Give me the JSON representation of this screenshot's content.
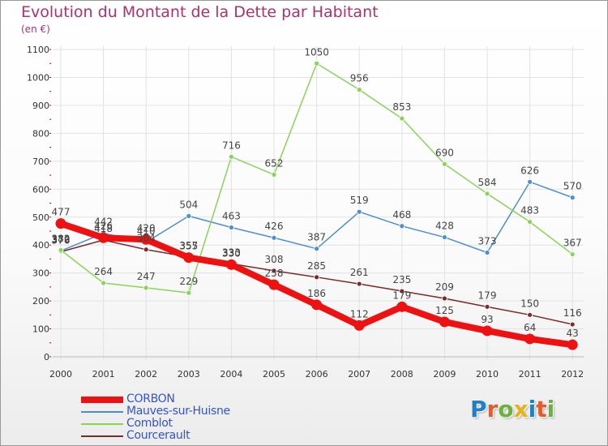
{
  "header": {
    "title": "Evolution du Montant de la Dette par Habitant",
    "subtitle": "(en €)"
  },
  "logo": {
    "letters": [
      "P",
      "r",
      "o",
      "x",
      "i",
      "t",
      "i"
    ]
  },
  "colors": {
    "title": "#b0306e",
    "legend_text": "#3355cc",
    "grid": "#dddddd",
    "axis_ticks": "#cc0000"
  },
  "chart_data": {
    "type": "line",
    "title": "Evolution du Montant de la Dette par Habitant",
    "subtitle": "(en €)",
    "xlabel": "",
    "ylabel": "",
    "x": [
      "2000",
      "2001",
      "2002",
      "2003",
      "2004",
      "2005",
      "2006",
      "2007",
      "2008",
      "2009",
      "2010",
      "2011",
      "2012"
    ],
    "ylim": [
      0,
      1100
    ],
    "yticks": [
      "0",
      "100",
      "200",
      "300",
      "400",
      "500",
      "600",
      "700",
      "800",
      "900",
      "1000",
      "1100"
    ],
    "grid": true,
    "legend_position": "bottom-left",
    "series": [
      {
        "name": "CORBON",
        "color": "#ee1111",
        "values": [
          477,
          426,
          420,
          355,
          330,
          258,
          186,
          112,
          179,
          125,
          93,
          64,
          43
        ],
        "labels": [
          "477",
          "426",
          "420",
          "355",
          "330",
          "258",
          "186",
          "112",
          "179",
          "125",
          "93",
          "64",
          "43"
        ]
      },
      {
        "name": "Mauves-sur-Huisne",
        "color": "#4a90d0",
        "values": [
          379,
          442,
          410,
          504,
          463,
          426,
          387,
          519,
          468,
          428,
          373,
          626,
          570
        ],
        "labels": [
          "379",
          "442",
          "410",
          "504",
          "463",
          "426",
          "387",
          "519",
          "468",
          "428",
          "373",
          "626",
          "570"
        ]
      },
      {
        "name": "Comblot",
        "color": "#88d458",
        "values": [
          382,
          264,
          247,
          229,
          716,
          652,
          1050,
          956,
          853,
          690,
          584,
          483,
          367
        ],
        "labels": [
          "382",
          "264",
          "247",
          "229",
          "716",
          "652",
          "1050",
          "956",
          "853",
          "690",
          "584",
          "483",
          "367"
        ]
      },
      {
        "name": "Courcerault",
        "color": "#7a2a2a",
        "values": [
          376,
          418,
          384,
          357,
          333,
          308,
          285,
          261,
          235,
          209,
          179,
          150,
          116
        ],
        "labels": [
          "376",
          "418",
          "384",
          "357",
          "333",
          "308",
          "285",
          "261",
          "235",
          "209",
          "179",
          "150",
          "116"
        ]
      }
    ]
  }
}
